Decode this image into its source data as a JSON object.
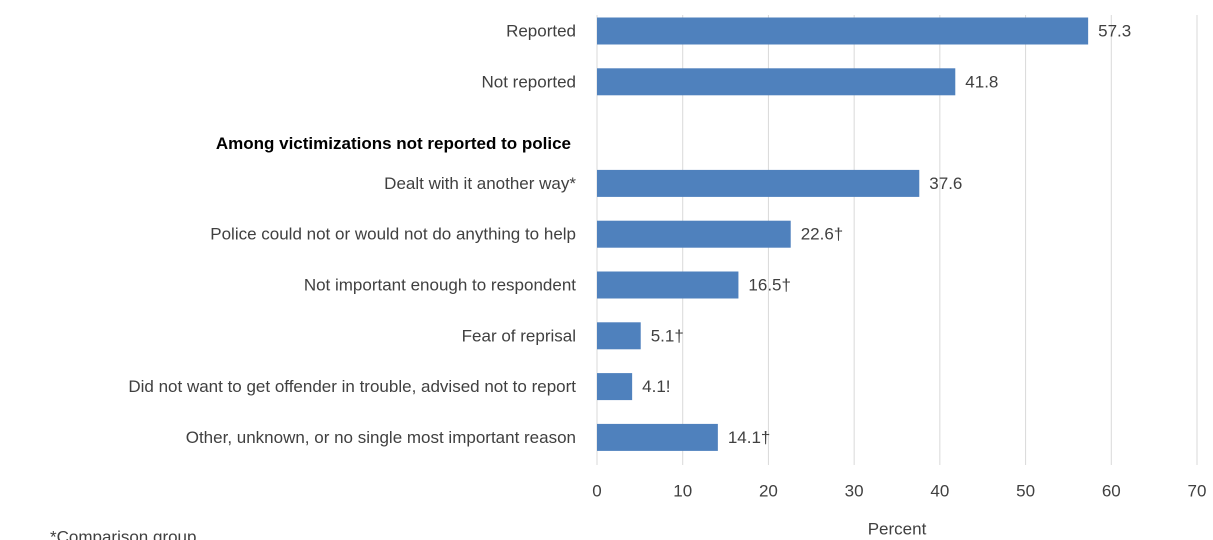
{
  "chart_data": {
    "type": "bar",
    "orientation": "horizontal",
    "categories": [
      "Reported",
      "Not reported",
      "Among victimizations not reported to police",
      "Dealt with it another way*",
      "Police could not or would not do anything to help",
      "Not important enough to respondent",
      "Fear of reprisal",
      "Did not want to get offender in trouble, advised not to report",
      "Other, unknown, or no single most important reason"
    ],
    "values": [
      57.3,
      41.8,
      null,
      37.6,
      22.6,
      16.5,
      5.1,
      4.1,
      14.1
    ],
    "value_labels": [
      "57.3",
      "41.8",
      null,
      "37.6",
      "22.6†",
      "16.5†",
      "5.1†",
      "4.1!",
      "14.1†"
    ],
    "color": "#4f81bd",
    "xlabel": "Percent",
    "xlim": [
      0,
      70
    ],
    "xticks": [
      0,
      10,
      20,
      30,
      40,
      50,
      60,
      70
    ],
    "grid": true,
    "footnote": "*Comparison group"
  }
}
